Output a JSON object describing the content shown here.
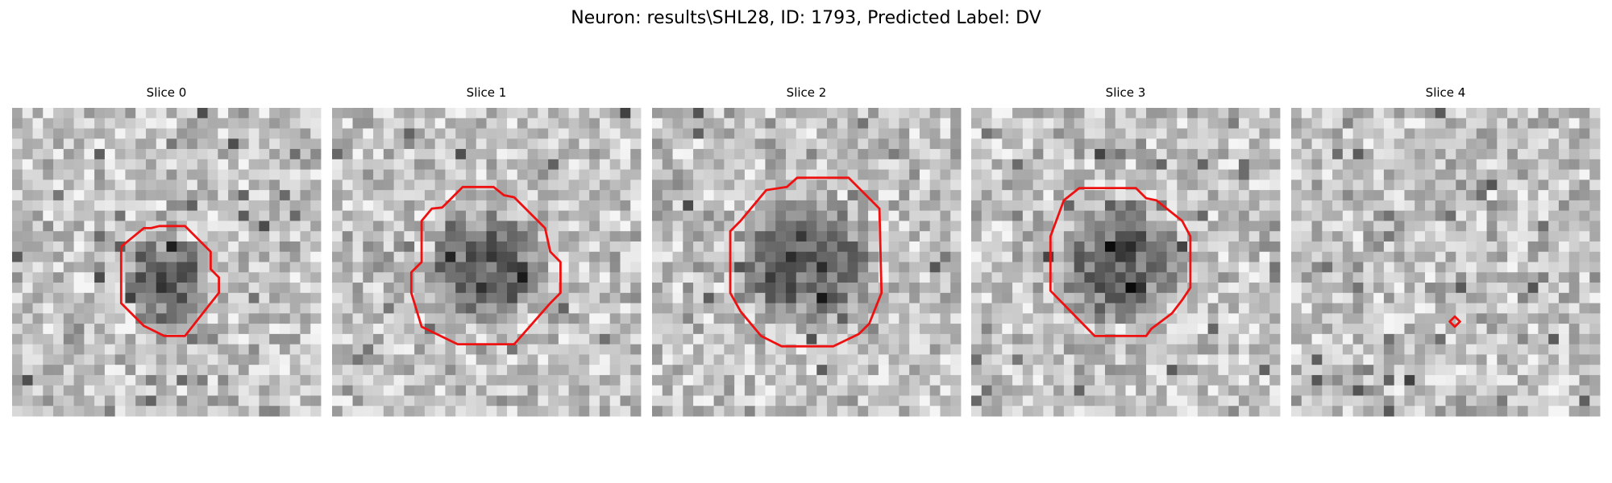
{
  "title": "Neuron: results\\SHL28, ID: 1793, Predicted Label: DV",
  "panels": [
    {
      "title": "Slice 0"
    },
    {
      "title": "Slice 1"
    },
    {
      "title": "Slice 2"
    },
    {
      "title": "Slice 3"
    },
    {
      "title": "Slice 4"
    }
  ]
}
